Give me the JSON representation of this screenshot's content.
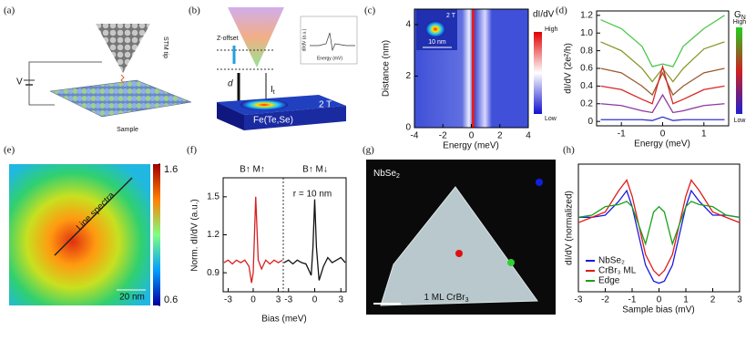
{
  "panel_labels": [
    "(a)",
    "(b)",
    "(c)",
    "(d)",
    "(e)",
    "(f)",
    "(g)",
    "(h)"
  ],
  "panel_a": {
    "tip": "STM tip",
    "bias": "V",
    "sample": "Sample"
  },
  "panel_b": {
    "z_offset": "Z-offset",
    "distance": "d",
    "current": "I",
    "current_sub": "t",
    "field": "2 T",
    "material": "Fe(Te,Se)",
    "inset_ylabel": "dI/dV (a.u.)",
    "inset_xlabel": "Energy (mV)"
  },
  "panel_g": {
    "substrate": "NbSe",
    "substrate_sub": "2",
    "island": "1 ML CrBr",
    "island_sub": "3"
  },
  "chart_data": [
    {
      "type": "heatmap",
      "title": "dI/dV",
      "xlabel": "Energy (meV)",
      "ylabel": "Distance (nm)",
      "xlim": [
        -4,
        4
      ],
      "xticks": [
        -4,
        -2,
        0,
        2,
        4
      ],
      "ylim": [
        0,
        4.6
      ],
      "yticks": [
        0,
        2,
        4
      ],
      "colorbar_labels": [
        "High",
        "Low"
      ],
      "inset_field": "2 T",
      "inset_scale": "10 nm"
    },
    {
      "type": "line",
      "xlabel": "Energy (meV)",
      "ylabel": "dI/dV (2e²/h)",
      "xlim": [
        -1.6,
        1.6
      ],
      "xticks": [
        -1,
        0,
        1
      ],
      "ylim": [
        -0.05,
        1.25
      ],
      "yticks": [
        0,
        0.2,
        0.4,
        0.6,
        0.8,
        {
          "value": 1,
          "label": "1.0"
        },
        1.2
      ],
      "x": [
        -1.5,
        -1.0,
        -0.5,
        -0.25,
        0,
        0.25,
        0.5,
        1.0,
        1.5
      ],
      "series": [
        {
          "color": "#4cc84c",
          "values": [
            1.15,
            1.05,
            0.85,
            0.62,
            0.65,
            0.62,
            0.85,
            1.05,
            1.2
          ]
        },
        {
          "color": "#8a9a30",
          "values": [
            0.9,
            0.8,
            0.6,
            0.45,
            0.6,
            0.45,
            0.6,
            0.82,
            0.9
          ]
        },
        {
          "color": "#9a5a30",
          "values": [
            0.6,
            0.55,
            0.4,
            0.3,
            0.55,
            0.3,
            0.4,
            0.55,
            0.6
          ]
        },
        {
          "color": "#d82828",
          "values": [
            0.4,
            0.36,
            0.25,
            0.2,
            0.62,
            0.2,
            0.25,
            0.36,
            0.4
          ]
        },
        {
          "color": "#8a3aa0",
          "values": [
            0.2,
            0.18,
            0.12,
            0.1,
            0.3,
            0.1,
            0.12,
            0.18,
            0.2
          ]
        },
        {
          "color": "#3030d0",
          "values": [
            0.02,
            0.02,
            0.02,
            0.01,
            0.05,
            0.01,
            0.02,
            0.02,
            0.02
          ]
        }
      ],
      "colorbar_title": "G",
      "colorbar_title_sub": "N",
      "colorbar_labels": [
        "High",
        "Low"
      ]
    },
    {
      "type": "heatmap",
      "annotation": "Line spectra",
      "scale": "20 nm",
      "clim": [
        0.6,
        1.6
      ],
      "cticks": [
        0.6,
        1.6
      ]
    },
    {
      "type": "line",
      "xlabel": "Bias (meV)",
      "ylabel": "Norm. dI/dV (a.u.)",
      "ylim": [
        0.75,
        1.65
      ],
      "yticks": [
        0.9,
        1.2,
        1.5
      ],
      "annotations": [
        "B↑ M↑",
        "B↑ M↓",
        "r = 10 nm"
      ],
      "series": [
        {
          "color": "#d62020",
          "xlim": [
            -3.6,
            3.6
          ],
          "xticks": [
            -3,
            0,
            3
          ],
          "x": [
            -3.5,
            -3,
            -2.5,
            -2,
            -1.5,
            -1,
            -0.5,
            -0.2,
            0,
            0.3,
            0.6,
            1,
            1.5,
            2,
            2.5,
            3,
            3.5
          ],
          "values": [
            0.98,
            1.0,
            0.97,
            1.0,
            0.98,
            1.0,
            0.95,
            0.82,
            0.9,
            1.5,
            1.0,
            0.93,
            1.0,
            0.97,
            1.0,
            0.98,
            1.0
          ]
        },
        {
          "color": "#111111",
          "xlim": [
            -3.6,
            3.6
          ],
          "xticks": [
            -3,
            0,
            3
          ],
          "x": [
            -3.5,
            -3,
            -2.5,
            -2,
            -1.5,
            -1,
            -0.4,
            -0.2,
            0,
            0.2,
            0.5,
            1,
            1.5,
            2,
            2.5,
            3,
            3.5
          ],
          "values": [
            0.98,
            1.0,
            0.97,
            1.0,
            0.98,
            0.97,
            0.88,
            1.1,
            1.48,
            1.1,
            0.84,
            0.95,
            1.02,
            0.98,
            1.0,
            1.02,
            0.98
          ]
        }
      ]
    },
    {
      "type": "line",
      "xlabel": "Sample bias (mV)",
      "ylabel": "dI/dV (normalized)",
      "xlim": [
        -3,
        3
      ],
      "xticks": [
        -3,
        -2,
        -1,
        0,
        1,
        2,
        3
      ],
      "ylim": [
        0,
        1.2
      ],
      "legend": "lower left",
      "x": [
        -3,
        -2.5,
        -2,
        -1.5,
        -1.2,
        -1,
        -0.5,
        -0.2,
        0,
        0.2,
        0.5,
        1,
        1.2,
        1.5,
        2,
        2.5,
        3
      ],
      "series": [
        {
          "name": "NbSe₂",
          "color": "#1a1ae0",
          "values": [
            0.7,
            0.7,
            0.72,
            0.85,
            0.95,
            0.8,
            0.25,
            0.1,
            0.08,
            0.1,
            0.25,
            0.8,
            0.95,
            0.85,
            0.72,
            0.72,
            0.7
          ]
        },
        {
          "name": "CrBr₃ ML",
          "color": "#e01a1a",
          "values": [
            0.65,
            0.7,
            0.75,
            0.95,
            1.05,
            0.9,
            0.35,
            0.2,
            0.15,
            0.2,
            0.35,
            0.9,
            1.05,
            0.95,
            0.75,
            0.7,
            0.65
          ]
        },
        {
          "name": "Edge",
          "color": "#1aa01a",
          "values": [
            0.7,
            0.72,
            0.8,
            0.82,
            0.85,
            0.8,
            0.45,
            0.75,
            0.8,
            0.75,
            0.45,
            0.8,
            0.85,
            0.82,
            0.8,
            0.72,
            0.7
          ]
        }
      ]
    }
  ]
}
